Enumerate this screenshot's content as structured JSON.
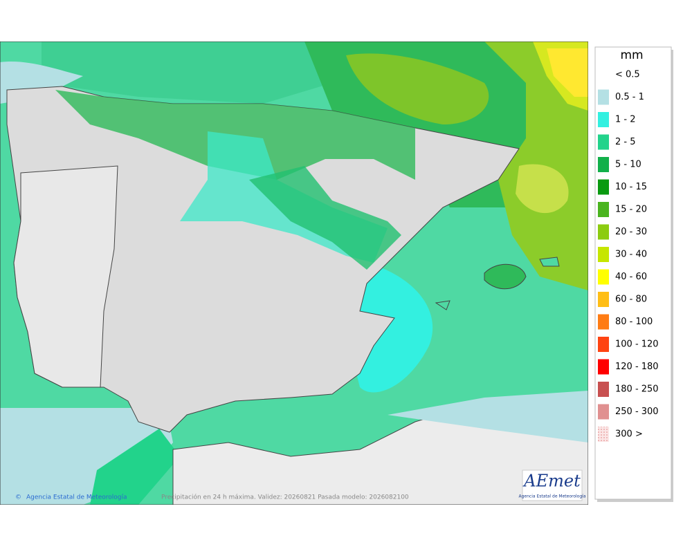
{
  "map": {
    "caption": "Precipitación en 24 h máxima. Validez: 20260821 Pasada modelo: 2026082100",
    "credit": "Agencia Estatal de Meteorología",
    "copyright": "©"
  },
  "logo": {
    "title": "AEmet",
    "subtitle": "Agencia Estatal de Meteorología"
  },
  "legend": {
    "title": "mm",
    "items": [
      {
        "label": "< 0.5"
      },
      {
        "label": "0.5 - 1",
        "color": "#b4e0e4"
      },
      {
        "label": "1 - 2",
        "color": "#33f0e0"
      },
      {
        "label": "2 - 5",
        "color": "#22d38b"
      },
      {
        "label": "5 - 10",
        "color": "#12b04a"
      },
      {
        "label": "10 - 15",
        "color": "#0a9a10"
      },
      {
        "label": "15 - 20",
        "color": "#4ab41e"
      },
      {
        "label": "20 - 30",
        "color": "#8ccc10"
      },
      {
        "label": "30 - 40",
        "color": "#c6e600"
      },
      {
        "label": "40 - 60",
        "color": "#ffff00"
      },
      {
        "label": "60 - 80",
        "color": "#ffbe16"
      },
      {
        "label": "80 - 100",
        "color": "#ff7c14"
      },
      {
        "label": "100 - 120",
        "color": "#ff4412"
      },
      {
        "label": "120 - 180",
        "color": "#ff0000"
      },
      {
        "label": "180 - 250",
        "color": "#c85050"
      },
      {
        "label": "250 - 300",
        "color": "#e09090"
      },
      {
        "label": "300 >",
        "color": "#f5c8c8"
      }
    ]
  }
}
